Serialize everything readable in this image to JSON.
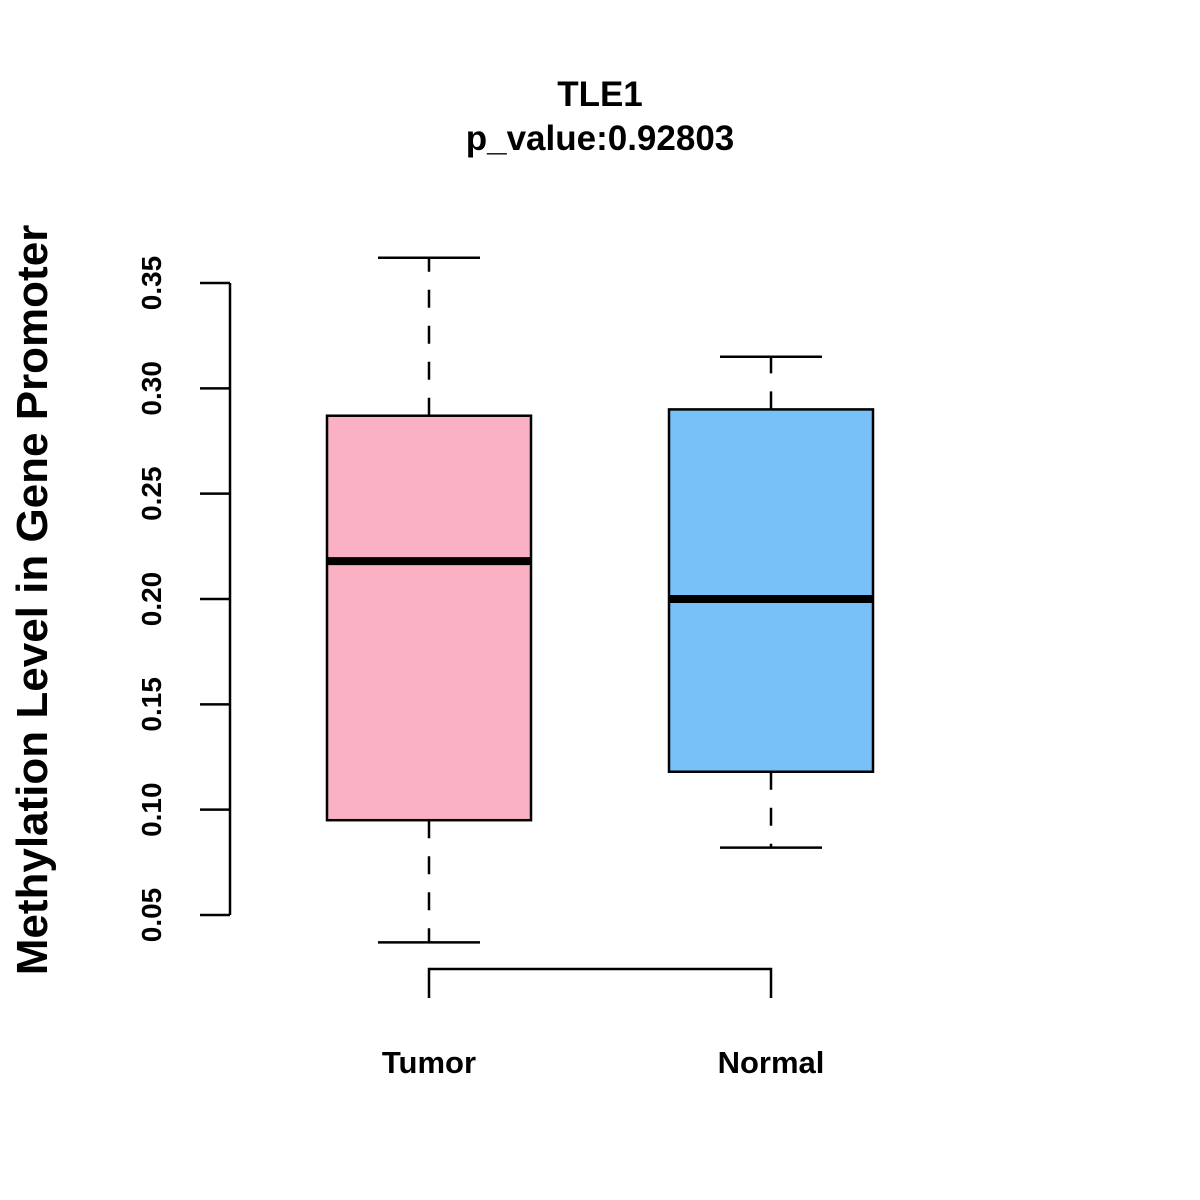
{
  "chart_data": {
    "type": "box",
    "title": "TLE1",
    "subtitle": "p_value:0.92803",
    "xlabel": "",
    "ylabel": "Methylation Level in Gene Promoter",
    "categories": [
      "Tumor",
      "Normal"
    ],
    "y_ticks": [
      "0.05",
      "0.10",
      "0.15",
      "0.20",
      "0.25",
      "0.30",
      "0.35"
    ],
    "ylim": [
      0.05,
      0.35
    ],
    "grid": false,
    "legend": "none",
    "boxes": [
      {
        "category": "Tumor",
        "whisker_low": 0.037,
        "q1": 0.095,
        "median": 0.218,
        "q3": 0.287,
        "whisker_high": 0.362,
        "fill": "#FBB1C4"
      },
      {
        "category": "Normal",
        "whisker_low": 0.082,
        "q1": 0.118,
        "median": 0.2,
        "q3": 0.29,
        "whisker_high": 0.315,
        "fill": "#77C1F8"
      }
    ],
    "comparison_bracket": {
      "between": [
        "Tumor",
        "Normal"
      ]
    }
  }
}
